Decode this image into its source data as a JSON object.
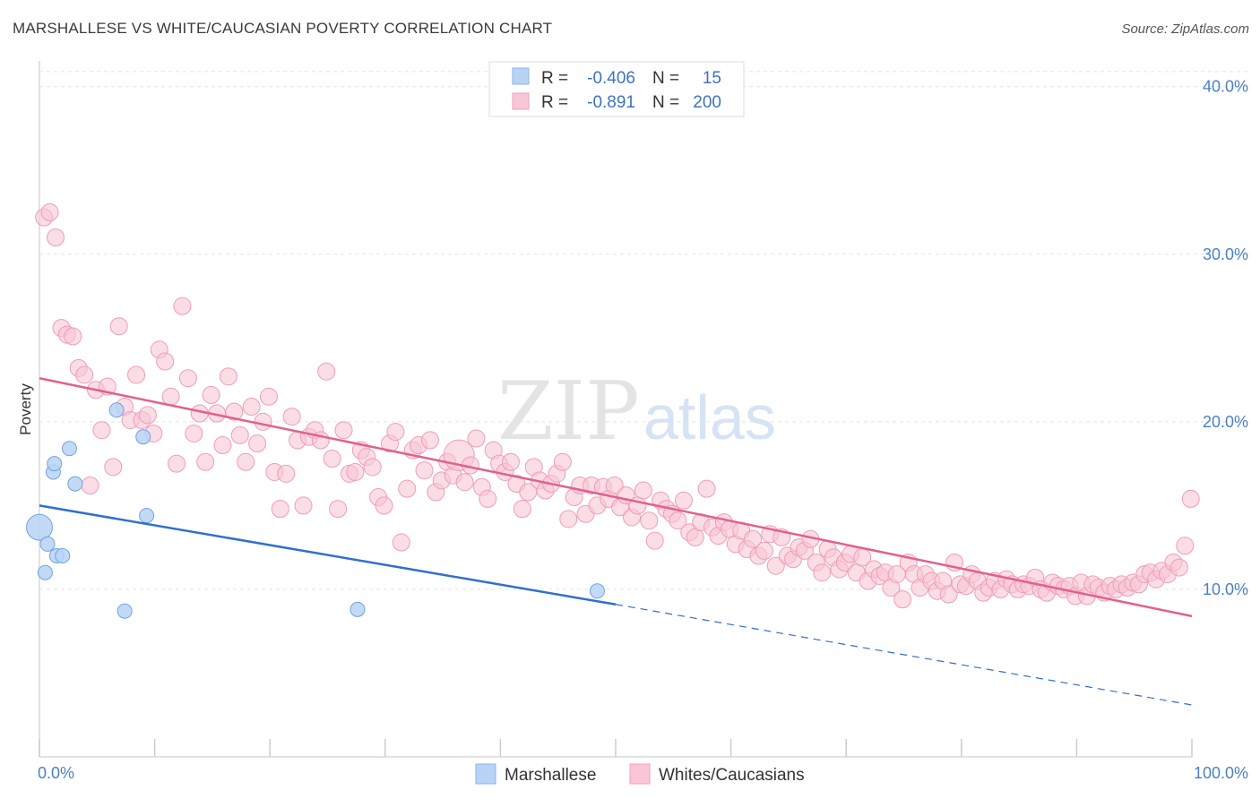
{
  "title": "MARSHALLESE VS WHITE/CAUCASIAN POVERTY CORRELATION CHART",
  "source": "Source: ZipAtlas.com",
  "watermark": {
    "zip": "ZIP",
    "atlas": "atlas"
  },
  "legend": {
    "r_label": "R =",
    "n_label": "N =",
    "rows": [
      {
        "r": "-0.406",
        "n": "15",
        "color": "#b8d3f5",
        "stroke": "#8ab4e8"
      },
      {
        "r": "-0.891",
        "n": "200",
        "color": "#f8c6d5",
        "stroke": "#f0a0ba"
      }
    ]
  },
  "bottom_legend": [
    "Marshallese",
    "Whites/Caucasians"
  ],
  "chart_data": {
    "type": "scatter",
    "ylabel": "Poverty",
    "xlim": [
      0,
      100
    ],
    "ylim": [
      0,
      41
    ],
    "x_tick_labels": [
      "0.0%",
      "100.0%"
    ],
    "y_ticks": [
      10,
      20,
      30,
      40
    ],
    "y_tick_labels": [
      "10.0%",
      "20.0%",
      "30.0%",
      "40.0%"
    ],
    "series": [
      {
        "name": "Marshallese",
        "color": "#b8d3f5",
        "stroke": "#6fa3e0",
        "line_color": "#2f6fd0",
        "trend": {
          "x0": 0,
          "y0": 15.0,
          "x1": 50,
          "y1": 9.1,
          "dash_to_x": 100,
          "dash_to_y": 3.1
        },
        "points": [
          [
            0.0,
            13.7,
            3
          ],
          [
            0.7,
            12.7,
            1
          ],
          [
            0.5,
            11.0,
            1
          ],
          [
            1.2,
            17.0,
            1
          ],
          [
            1.3,
            17.5,
            1
          ],
          [
            1.5,
            12.0,
            1
          ],
          [
            2.0,
            12.0,
            1
          ],
          [
            2.6,
            18.4,
            1
          ],
          [
            3.1,
            16.3,
            1
          ],
          [
            6.7,
            20.7,
            1
          ],
          [
            7.4,
            8.7,
            1
          ],
          [
            9.0,
            19.1,
            1
          ],
          [
            9.3,
            14.4,
            1
          ],
          [
            27.6,
            8.8,
            1
          ],
          [
            48.4,
            9.9,
            1
          ]
        ]
      },
      {
        "name": "Whites/Caucasians",
        "color": "#f8c6d5",
        "stroke": "#ee9db6",
        "line_color": "#e2608d",
        "trend": {
          "x0": 0,
          "y0": 22.6,
          "x1": 100,
          "y1": 8.4
        },
        "points": [
          [
            0.4,
            32.2,
            1
          ],
          [
            0.9,
            32.5,
            1
          ],
          [
            1.4,
            31.0,
            1
          ],
          [
            1.9,
            25.6,
            1
          ],
          [
            2.4,
            25.2,
            1
          ],
          [
            2.9,
            25.1,
            1
          ],
          [
            3.4,
            23.2,
            1
          ],
          [
            3.9,
            22.8,
            1
          ],
          [
            4.4,
            16.2,
            1
          ],
          [
            4.9,
            21.9,
            1
          ],
          [
            5.4,
            19.5,
            1
          ],
          [
            5.9,
            22.1,
            1
          ],
          [
            6.4,
            17.3,
            1
          ],
          [
            6.9,
            25.7,
            1
          ],
          [
            7.4,
            20.9,
            1
          ],
          [
            7.9,
            20.1,
            1
          ],
          [
            8.4,
            22.8,
            1
          ],
          [
            8.9,
            20.1,
            1
          ],
          [
            9.4,
            20.4,
            1
          ],
          [
            9.9,
            19.3,
            1
          ],
          [
            10.4,
            24.3,
            1
          ],
          [
            10.9,
            23.6,
            1
          ],
          [
            11.4,
            21.5,
            1
          ],
          [
            11.9,
            17.5,
            1
          ],
          [
            12.4,
            26.9,
            1
          ],
          [
            12.9,
            22.6,
            1
          ],
          [
            13.4,
            19.3,
            1
          ],
          [
            13.9,
            20.5,
            1
          ],
          [
            14.4,
            17.6,
            1
          ],
          [
            14.9,
            21.6,
            1
          ],
          [
            15.4,
            20.5,
            1
          ],
          [
            15.9,
            18.6,
            1
          ],
          [
            16.4,
            22.7,
            1
          ],
          [
            16.9,
            20.6,
            1
          ],
          [
            17.4,
            19.2,
            1
          ],
          [
            17.9,
            17.6,
            1
          ],
          [
            18.4,
            20.9,
            1
          ],
          [
            18.9,
            18.7,
            1
          ],
          [
            19.4,
            20.0,
            1
          ],
          [
            19.9,
            21.5,
            1
          ],
          [
            20.4,
            17.0,
            1
          ],
          [
            20.9,
            14.8,
            1
          ],
          [
            21.4,
            16.9,
            1
          ],
          [
            21.9,
            20.3,
            1
          ],
          [
            22.4,
            18.9,
            1
          ],
          [
            22.9,
            15.0,
            1
          ],
          [
            23.4,
            19.1,
            1
          ],
          [
            23.9,
            19.5,
            1
          ],
          [
            24.4,
            18.9,
            1
          ],
          [
            24.9,
            23.0,
            1
          ],
          [
            25.4,
            17.8,
            1
          ],
          [
            25.9,
            14.8,
            1
          ],
          [
            26.4,
            19.5,
            1
          ],
          [
            26.9,
            16.9,
            1
          ],
          [
            27.4,
            17.0,
            1
          ],
          [
            27.9,
            18.3,
            1
          ],
          [
            28.4,
            17.9,
            1
          ],
          [
            28.9,
            17.3,
            1
          ],
          [
            29.4,
            15.5,
            1
          ],
          [
            29.9,
            15.0,
            1
          ],
          [
            30.4,
            18.7,
            1
          ],
          [
            30.9,
            19.4,
            1
          ],
          [
            31.4,
            12.8,
            1
          ],
          [
            31.9,
            16.0,
            1
          ],
          [
            32.4,
            18.3,
            1
          ],
          [
            32.9,
            18.6,
            1
          ],
          [
            33.4,
            17.1,
            1
          ],
          [
            33.9,
            18.9,
            1
          ],
          [
            34.4,
            15.8,
            1
          ],
          [
            34.9,
            16.5,
            1
          ],
          [
            35.4,
            17.6,
            1
          ],
          [
            35.9,
            16.8,
            1
          ],
          [
            36.4,
            18.0,
            3
          ],
          [
            36.9,
            16.4,
            1
          ],
          [
            37.4,
            17.4,
            1
          ],
          [
            37.9,
            19.0,
            1
          ],
          [
            38.4,
            16.1,
            1
          ],
          [
            38.9,
            15.4,
            1
          ],
          [
            39.4,
            18.3,
            1
          ],
          [
            39.9,
            17.5,
            1
          ],
          [
            40.4,
            17.0,
            1
          ],
          [
            40.9,
            17.6,
            1
          ],
          [
            41.4,
            16.3,
            1
          ],
          [
            41.9,
            14.8,
            1
          ],
          [
            42.4,
            15.8,
            1
          ],
          [
            42.9,
            17.3,
            1
          ],
          [
            43.4,
            16.5,
            1
          ],
          [
            43.9,
            15.9,
            1
          ],
          [
            44.4,
            16.3,
            1
          ],
          [
            44.9,
            16.9,
            1
          ],
          [
            45.4,
            17.6,
            1
          ],
          [
            45.9,
            14.2,
            1
          ],
          [
            46.4,
            15.5,
            1
          ],
          [
            46.9,
            16.2,
            1
          ],
          [
            47.4,
            14.5,
            1
          ],
          [
            47.9,
            16.2,
            1
          ],
          [
            48.4,
            15.0,
            1
          ],
          [
            48.9,
            16.1,
            1
          ],
          [
            49.4,
            15.4,
            1
          ],
          [
            49.9,
            16.2,
            1
          ],
          [
            50.4,
            14.9,
            1
          ],
          [
            50.9,
            15.6,
            1
          ],
          [
            51.4,
            14.3,
            1
          ],
          [
            51.9,
            15.0,
            1
          ],
          [
            52.4,
            15.9,
            1
          ],
          [
            52.9,
            14.1,
            1
          ],
          [
            53.4,
            12.9,
            1
          ],
          [
            53.9,
            15.3,
            1
          ],
          [
            54.4,
            14.8,
            1
          ],
          [
            54.9,
            14.5,
            1
          ],
          [
            55.4,
            14.1,
            1
          ],
          [
            55.9,
            15.3,
            1
          ],
          [
            56.4,
            13.4,
            1
          ],
          [
            56.9,
            13.1,
            1
          ],
          [
            57.4,
            14.0,
            1
          ],
          [
            57.9,
            16.0,
            1
          ],
          [
            58.4,
            13.7,
            1
          ],
          [
            58.9,
            13.2,
            1
          ],
          [
            59.4,
            14.0,
            1
          ],
          [
            59.9,
            13.6,
            1
          ],
          [
            60.4,
            12.7,
            1
          ],
          [
            60.9,
            13.5,
            1
          ],
          [
            61.4,
            12.4,
            1
          ],
          [
            61.9,
            13.0,
            1
          ],
          [
            62.4,
            12.0,
            1
          ],
          [
            62.9,
            12.3,
            1
          ],
          [
            63.4,
            13.3,
            1
          ],
          [
            63.9,
            11.4,
            1
          ],
          [
            64.4,
            13.1,
            1
          ],
          [
            64.9,
            12.0,
            1
          ],
          [
            65.4,
            11.8,
            1
          ],
          [
            65.9,
            12.5,
            1
          ],
          [
            66.4,
            12.3,
            1
          ],
          [
            66.9,
            13.0,
            1
          ],
          [
            67.4,
            11.6,
            1
          ],
          [
            67.9,
            11.0,
            1
          ],
          [
            68.4,
            12.4,
            1
          ],
          [
            68.9,
            11.9,
            1
          ],
          [
            69.4,
            11.2,
            1
          ],
          [
            69.9,
            11.6,
            1
          ],
          [
            70.4,
            12.1,
            1
          ],
          [
            70.9,
            11.0,
            1
          ],
          [
            71.4,
            11.9,
            1
          ],
          [
            71.9,
            10.5,
            1
          ],
          [
            72.4,
            11.2,
            1
          ],
          [
            72.9,
            10.8,
            1
          ],
          [
            73.4,
            11.0,
            1
          ],
          [
            73.9,
            10.1,
            1
          ],
          [
            74.4,
            10.9,
            1
          ],
          [
            74.9,
            9.4,
            1
          ],
          [
            75.4,
            11.6,
            1
          ],
          [
            75.9,
            10.9,
            1
          ],
          [
            76.4,
            10.1,
            1
          ],
          [
            76.9,
            10.9,
            1
          ],
          [
            77.4,
            10.5,
            1
          ],
          [
            77.9,
            9.9,
            1
          ],
          [
            78.4,
            10.5,
            1
          ],
          [
            78.9,
            9.7,
            1
          ],
          [
            79.4,
            11.6,
            1
          ],
          [
            79.9,
            10.3,
            1
          ],
          [
            80.4,
            10.2,
            1
          ],
          [
            80.9,
            10.9,
            1
          ],
          [
            81.4,
            10.5,
            1
          ],
          [
            81.9,
            9.8,
            1
          ],
          [
            82.4,
            10.1,
            1
          ],
          [
            82.9,
            10.5,
            1
          ],
          [
            83.4,
            10.0,
            1
          ],
          [
            83.9,
            10.6,
            1
          ],
          [
            84.4,
            10.3,
            1
          ],
          [
            84.9,
            10.0,
            1
          ],
          [
            85.4,
            10.3,
            1
          ],
          [
            85.9,
            10.2,
            1
          ],
          [
            86.4,
            10.7,
            1
          ],
          [
            86.9,
            10.0,
            1
          ],
          [
            87.4,
            9.8,
            1
          ],
          [
            87.9,
            10.4,
            1
          ],
          [
            88.4,
            10.2,
            1
          ],
          [
            88.9,
            10.0,
            1
          ],
          [
            89.4,
            10.2,
            1
          ],
          [
            89.9,
            9.6,
            1
          ],
          [
            90.4,
            10.4,
            1
          ],
          [
            90.9,
            9.6,
            1
          ],
          [
            91.4,
            10.3,
            1
          ],
          [
            91.9,
            10.1,
            1
          ],
          [
            92.4,
            9.8,
            1
          ],
          [
            92.9,
            10.2,
            1
          ],
          [
            93.4,
            10.0,
            1
          ],
          [
            93.9,
            10.3,
            1
          ],
          [
            94.4,
            10.1,
            1
          ],
          [
            94.9,
            10.4,
            1
          ],
          [
            95.4,
            10.3,
            1
          ],
          [
            95.9,
            10.9,
            1
          ],
          [
            96.4,
            11.0,
            1
          ],
          [
            96.9,
            10.6,
            1
          ],
          [
            97.4,
            11.1,
            1
          ],
          [
            97.9,
            10.9,
            1
          ],
          [
            98.4,
            11.6,
            1
          ],
          [
            98.9,
            11.3,
            1
          ],
          [
            99.4,
            12.6,
            1
          ],
          [
            99.9,
            15.4,
            1
          ]
        ]
      }
    ]
  }
}
